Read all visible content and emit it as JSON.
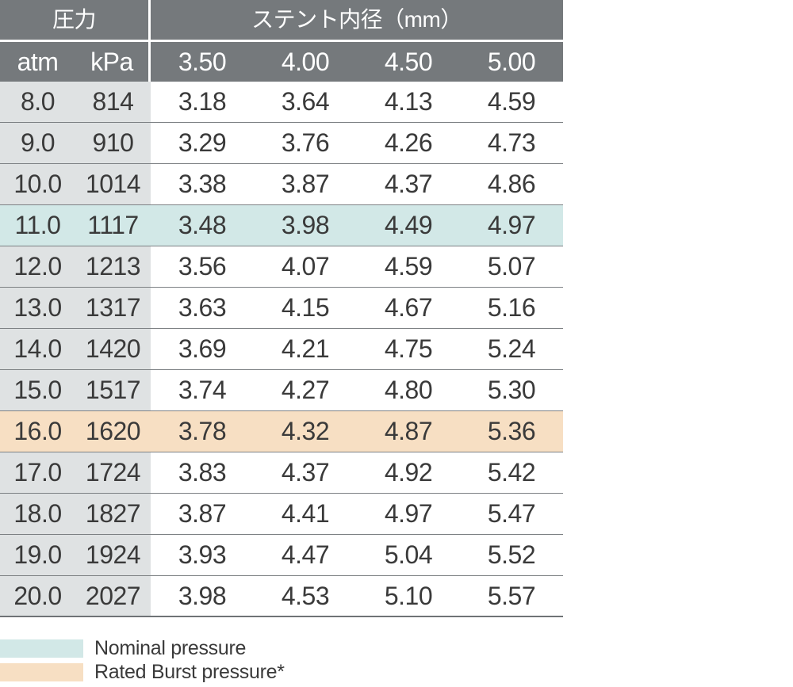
{
  "colors": {
    "header_bg": "#75797c",
    "header_text": "#ffffff",
    "press_col_bg": "#dfe2e3",
    "nominal_bg": "#d2e8e7",
    "burst_bg": "#f7dfc3",
    "divider": "#7d8184",
    "table_bottom": "#6f7376",
    "text": "#3a3a3a"
  },
  "table": {
    "header": {
      "pressure_label": "圧力",
      "diameter_label": "ステント内径（mm）",
      "pressure_columns": [
        "atm",
        "kPa"
      ],
      "diameter_columns": [
        "3.50",
        "4.00",
        "4.50",
        "5.00"
      ]
    },
    "rows": [
      {
        "atm": "8.0",
        "kpa": "814",
        "values": [
          "3.18",
          "3.64",
          "4.13",
          "4.59"
        ],
        "highlight": "none"
      },
      {
        "atm": "9.0",
        "kpa": "910",
        "values": [
          "3.29",
          "3.76",
          "4.26",
          "4.73"
        ],
        "highlight": "none"
      },
      {
        "atm": "10.0",
        "kpa": "1014",
        "values": [
          "3.38",
          "3.87",
          "4.37",
          "4.86"
        ],
        "highlight": "none"
      },
      {
        "atm": "11.0",
        "kpa": "1117",
        "values": [
          "3.48",
          "3.98",
          "4.49",
          "4.97"
        ],
        "highlight": "nominal"
      },
      {
        "atm": "12.0",
        "kpa": "1213",
        "values": [
          "3.56",
          "4.07",
          "4.59",
          "5.07"
        ],
        "highlight": "none"
      },
      {
        "atm": "13.0",
        "kpa": "1317",
        "values": [
          "3.63",
          "4.15",
          "4.67",
          "5.16"
        ],
        "highlight": "none"
      },
      {
        "atm": "14.0",
        "kpa": "1420",
        "values": [
          "3.69",
          "4.21",
          "4.75",
          "5.24"
        ],
        "highlight": "none"
      },
      {
        "atm": "15.0",
        "kpa": "1517",
        "values": [
          "3.74",
          "4.27",
          "4.80",
          "5.30"
        ],
        "highlight": "none"
      },
      {
        "atm": "16.0",
        "kpa": "1620",
        "values": [
          "3.78",
          "4.32",
          "4.87",
          "5.36"
        ],
        "highlight": "burst"
      },
      {
        "atm": "17.0",
        "kpa": "1724",
        "values": [
          "3.83",
          "4.37",
          "4.92",
          "5.42"
        ],
        "highlight": "none"
      },
      {
        "atm": "18.0",
        "kpa": "1827",
        "values": [
          "3.87",
          "4.41",
          "4.97",
          "5.47"
        ],
        "highlight": "none"
      },
      {
        "atm": "19.0",
        "kpa": "1924",
        "values": [
          "3.93",
          "4.47",
          "5.04",
          "5.52"
        ],
        "highlight": "none"
      },
      {
        "atm": "20.0",
        "kpa": "2027",
        "values": [
          "3.98",
          "4.53",
          "5.10",
          "5.57"
        ],
        "highlight": "none"
      }
    ]
  },
  "legend": {
    "items": [
      {
        "label": "Nominal pressure",
        "type": "nominal"
      },
      {
        "label": "Rated Burst pressure*",
        "type": "burst"
      }
    ]
  }
}
